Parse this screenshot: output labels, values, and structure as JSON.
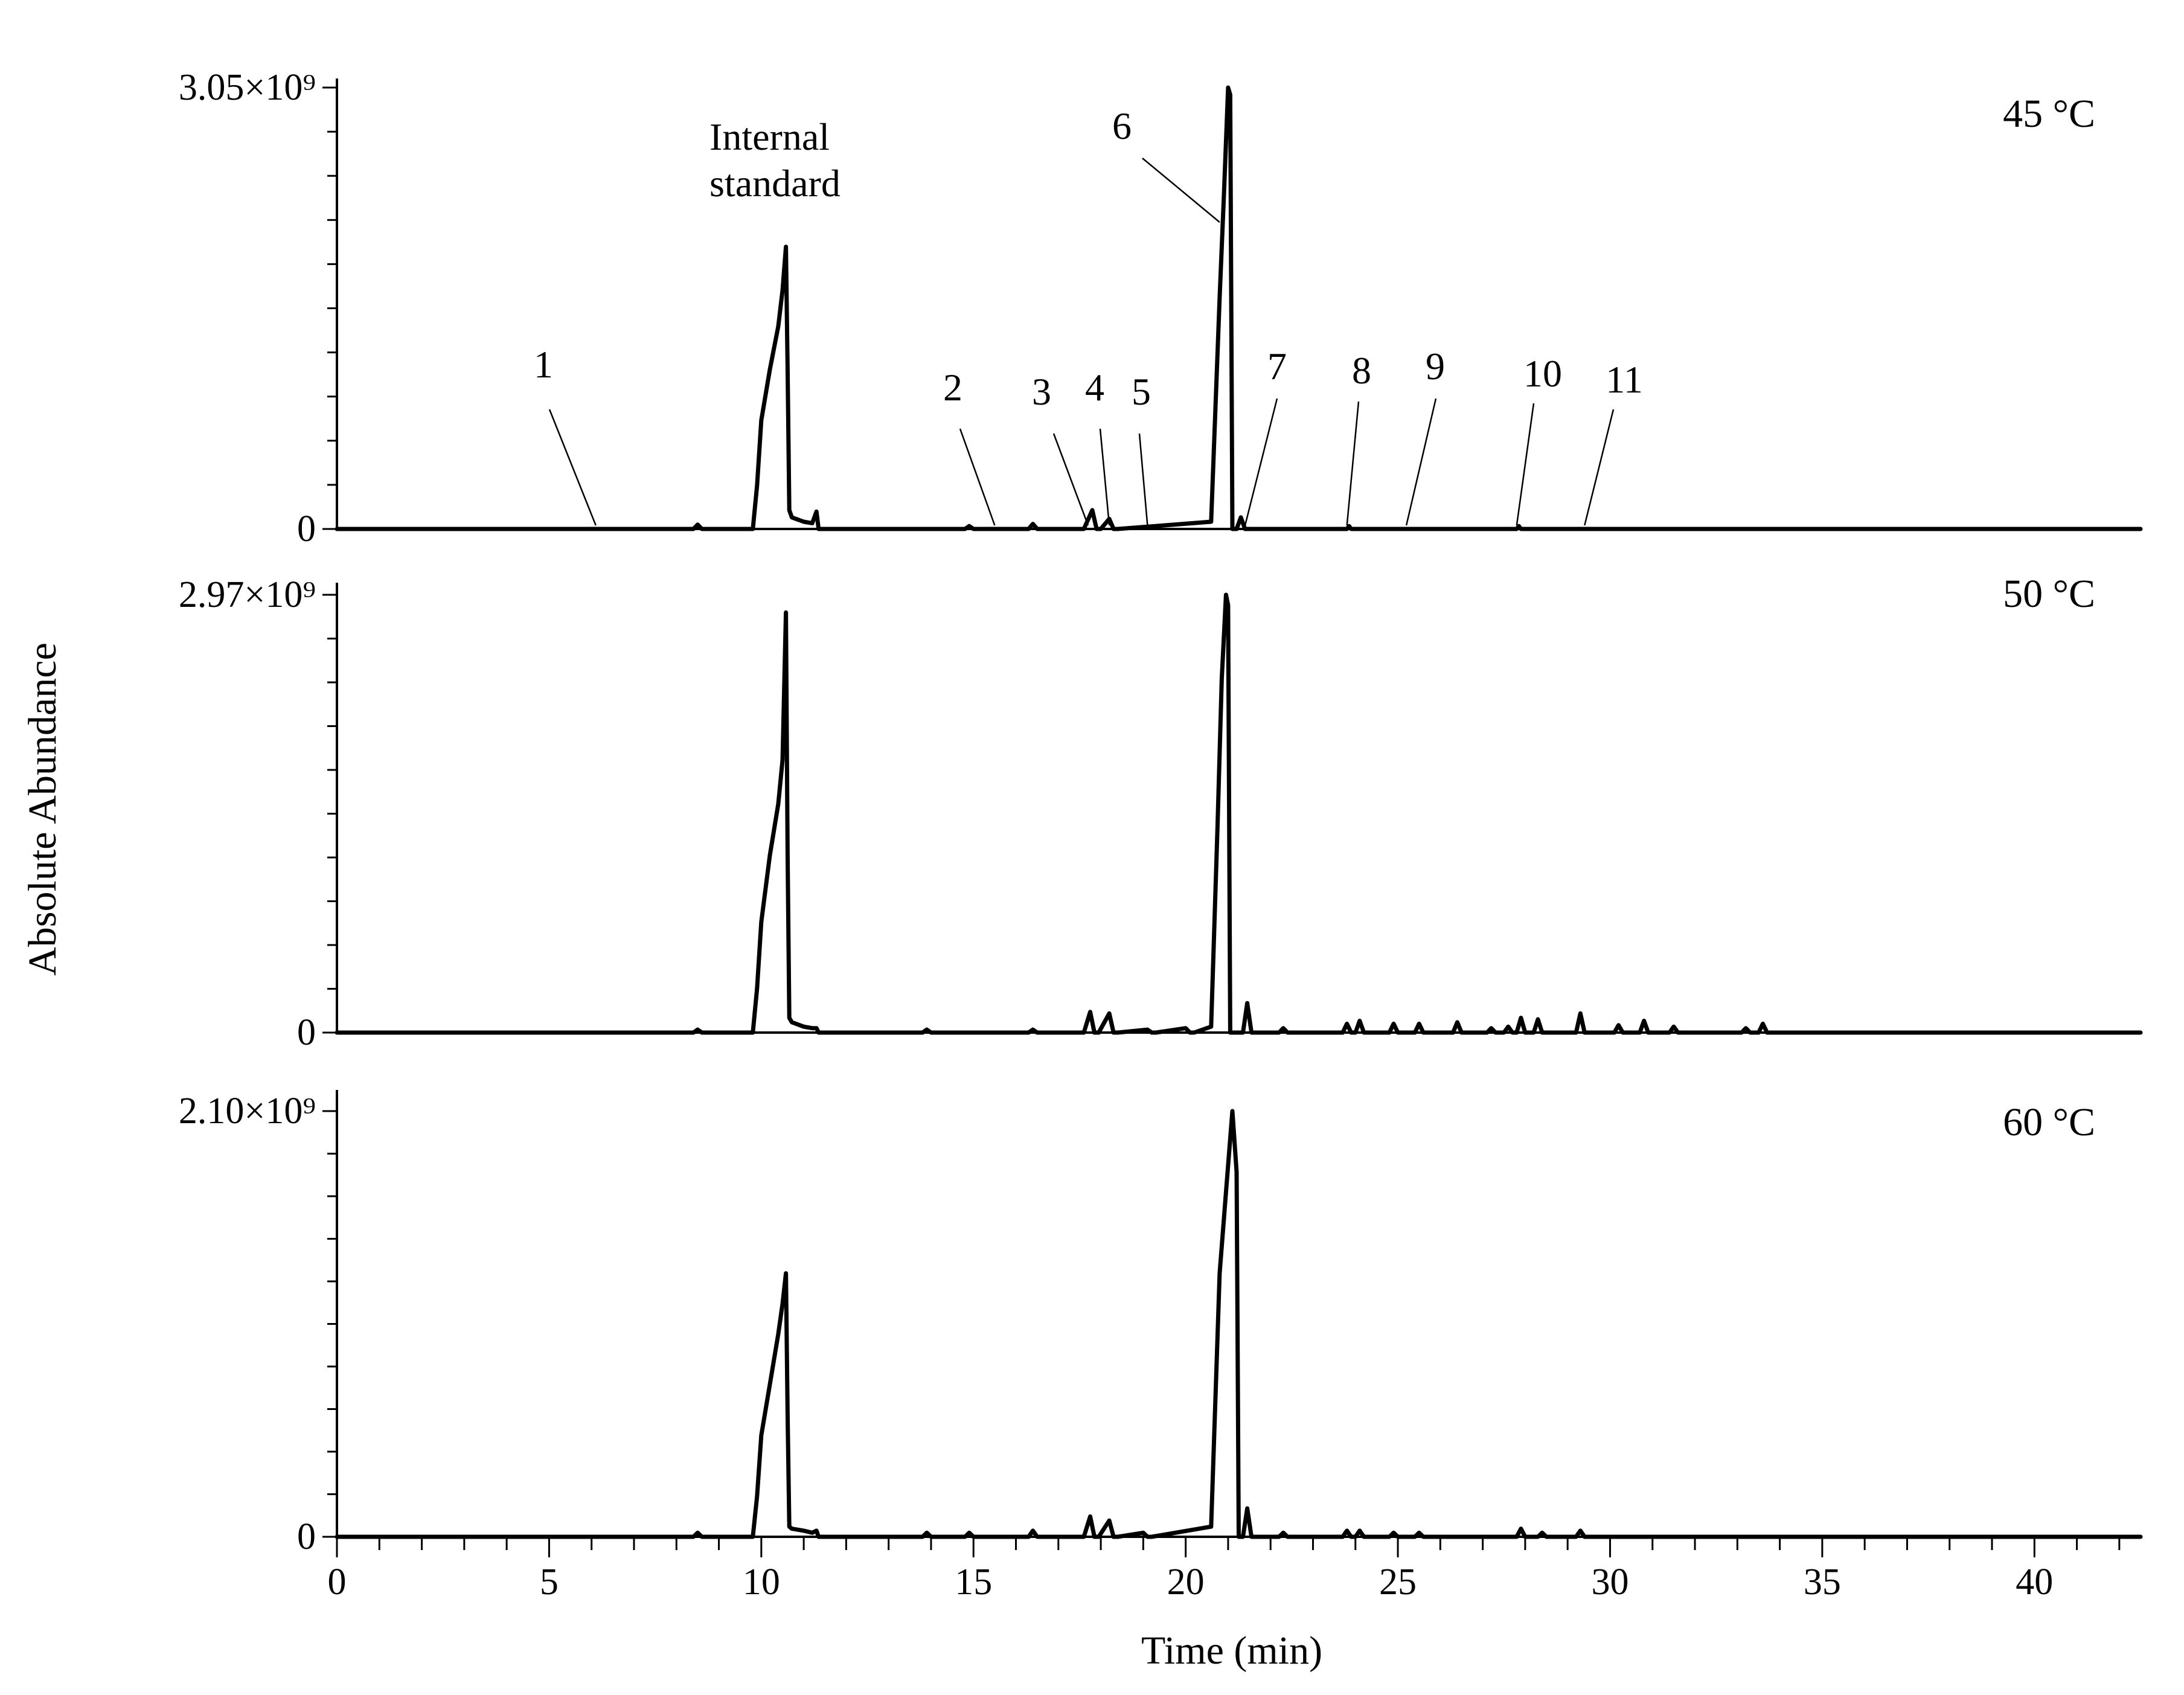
{
  "chart_data": {
    "type": "line",
    "xlabel": "Time (min)",
    "ylabel": "Absolute Abundance",
    "xlim": [
      0,
      42.5
    ],
    "x_ticks": [
      0,
      5,
      10,
      15,
      20,
      25,
      30,
      35,
      40
    ],
    "x_minor_step": 1,
    "grid": false,
    "annotations": {
      "internal_standard": [
        "Internal",
        "standard"
      ],
      "peaks": [
        {
          "label": "1",
          "time": 6.1,
          "panel": 0
        },
        {
          "label": "2",
          "time": 15.5,
          "panel": 0
        },
        {
          "label": "3",
          "time": 17.7,
          "panel": 0
        },
        {
          "label": "4",
          "time": 18.2,
          "panel": 0
        },
        {
          "label": "5",
          "time": 19.1,
          "panel": 0
        },
        {
          "label": "6",
          "time": 20.8,
          "panel": 0
        },
        {
          "label": "7",
          "time": 21.4,
          "panel": 0
        },
        {
          "label": "8",
          "time": 23.8,
          "panel": 0
        },
        {
          "label": "9",
          "time": 25.2,
          "panel": 0
        },
        {
          "label": "10",
          "time": 27.8,
          "panel": 0
        },
        {
          "label": "11",
          "time": 29.4,
          "panel": 0
        }
      ]
    },
    "panels": [
      {
        "title": "45 °C",
        "y_tick_labels": {
          "zero": "0",
          "max": "3.05×10⁹"
        },
        "ylim": [
          0,
          3050000000.0
        ],
        "y_minor_ticks": 10,
        "series": [
          {
            "x": [
              0,
              8.4,
              8.5,
              8.6,
              9.8,
              9.9,
              10.0,
              10.2,
              10.4,
              10.5,
              10.58,
              10.62,
              10.66,
              10.72,
              11.0,
              11.2,
              11.3,
              11.35,
              11.4,
              14.8,
              14.9,
              15.0,
              16.3,
              16.4,
              16.5,
              17.6,
              17.8,
              17.9,
              18.0,
              18.2,
              18.3,
              18.4,
              20.6,
              20.8,
              20.9,
              21.0,
              21.05,
              21.1,
              21.2,
              21.3,
              21.4,
              21.5,
              23.8,
              23.85,
              23.9,
              27.8,
              27.85,
              27.9,
              42.5
            ],
            "y": [
              0,
              0,
              30000000.0,
              0,
              0,
              300000000.0,
              750000000.0,
              1100000000.0,
              1400000000.0,
              1650000000.0,
              1950000000.0,
              1100000000.0,
              130000000.0,
              80000000.0,
              50000000.0,
              40000000.0,
              120000000.0,
              0,
              0,
              0,
              20000000.0,
              0,
              0,
              35000000.0,
              0,
              0,
              130000000.0,
              0,
              0,
              70000000.0,
              0,
              0,
              50000000.0,
              1600000000.0,
              2300000000.0,
              3050000000.0,
              3000000000.0,
              0,
              0,
              80000000.0,
              0,
              0,
              0,
              20000000.0,
              0,
              0,
              20000000.0,
              0,
              0
            ]
          }
        ]
      },
      {
        "title": "50 °C",
        "y_tick_labels": {
          "zero": "0",
          "max": "2.97×10⁹"
        },
        "ylim": [
          0,
          2970000000.0
        ],
        "y_minor_ticks": 10,
        "series": [
          {
            "x": [
              0,
              8.4,
              8.5,
              8.6,
              9.8,
              9.9,
              10.0,
              10.2,
              10.4,
              10.5,
              10.58,
              10.62,
              10.66,
              10.72,
              11.0,
              11.2,
              11.3,
              11.35,
              11.4,
              13.8,
              13.9,
              14.0,
              16.3,
              16.4,
              16.5,
              17.6,
              17.75,
              17.85,
              17.95,
              18.2,
              18.3,
              18.4,
              19.1,
              19.2,
              19.3,
              20.0,
              20.1,
              20.2,
              20.6,
              20.75,
              20.85,
              20.95,
              21.0,
              21.05,
              21.1,
              21.35,
              21.45,
              21.55,
              22.2,
              22.3,
              22.4,
              23.7,
              23.8,
              23.9,
              24.0,
              24.1,
              24.2,
              24.3,
              24.8,
              24.9,
              25.0,
              25.4,
              25.5,
              25.6,
              26.3,
              26.4,
              26.5,
              27.1,
              27.2,
              27.3,
              27.5,
              27.6,
              27.7,
              27.8,
              27.9,
              28.0,
              28.2,
              28.3,
              28.4,
              29.2,
              29.3,
              29.4,
              30.1,
              30.2,
              30.3,
              30.7,
              30.8,
              30.9,
              31.4,
              31.5,
              31.6,
              33.1,
              33.2,
              33.3,
              33.5,
              33.6,
              33.7,
              42.5
            ],
            "y": [
              0,
              0,
              20000000.0,
              0,
              0,
              300000000.0,
              750000000.0,
              1200000000.0,
              1550000000.0,
              1850000000.0,
              2850000000.0,
              1200000000.0,
              100000000.0,
              70000000.0,
              40000000.0,
              30000000.0,
              30000000.0,
              0,
              0,
              0,
              20000000.0,
              0,
              0,
              20000000.0,
              0,
              0,
              140000000.0,
              0,
              0,
              130000000.0,
              0,
              0,
              20000000.0,
              0,
              0,
              30000000.0,
              0,
              0,
              40000000.0,
              1400000000.0,
              2400000000.0,
              2970000000.0,
              2900000000.0,
              0,
              0,
              0,
              200000000.0,
              0,
              0,
              30000000.0,
              0,
              0,
              60000000.0,
              0,
              0,
              80000000.0,
              0,
              0,
              0,
              60000000.0,
              0,
              0,
              60000000.0,
              0,
              0,
              70000000.0,
              0,
              0,
              30000000.0,
              0,
              0,
              40000000.0,
              0,
              0,
              100000000.0,
              0,
              0,
              90000000.0,
              0,
              0,
              130000000.0,
              0,
              0,
              50000000.0,
              0,
              0,
              80000000.0,
              0,
              0,
              40000000.0,
              0,
              0,
              30000000.0,
              0,
              0,
              60000000.0,
              0,
              0
            ]
          }
        ]
      },
      {
        "title": "60 °C",
        "y_tick_labels": {
          "zero": "0",
          "max": "2.10×10⁹"
        },
        "ylim": [
          0,
          2100000000.0
        ],
        "y_minor_ticks": 10,
        "series": [
          {
            "x": [
              0,
              8.4,
              8.5,
              8.6,
              9.8,
              9.9,
              10.0,
              10.2,
              10.4,
              10.5,
              10.58,
              10.62,
              10.66,
              10.72,
              11.0,
              11.2,
              11.3,
              11.35,
              11.4,
              13.8,
              13.9,
              14.0,
              14.8,
              14.9,
              15.0,
              16.3,
              16.4,
              16.5,
              17.6,
              17.75,
              17.85,
              17.95,
              18.2,
              18.3,
              18.4,
              19.0,
              19.1,
              19.2,
              20.6,
              20.8,
              20.95,
              21.1,
              21.2,
              21.25,
              21.3,
              21.35,
              21.45,
              21.55,
              22.2,
              22.3,
              22.4,
              23.7,
              23.8,
              23.9,
              24.0,
              24.1,
              24.2,
              24.8,
              24.9,
              25.0,
              25.4,
              25.5,
              25.6,
              27.8,
              27.9,
              28.0,
              28.3,
              28.4,
              28.5,
              29.2,
              29.3,
              29.4,
              42.5
            ],
            "y": [
              0,
              0,
              20000000.0,
              0,
              0,
              200000000.0,
              500000000.0,
              750000000.0,
              1000000000.0,
              1150000000.0,
              1300000000.0,
              600000000.0,
              50000000.0,
              40000000.0,
              30000000.0,
              20000000.0,
              30000000.0,
              0,
              0,
              0,
              20000000.0,
              0,
              0,
              20000000.0,
              0,
              0,
              30000000.0,
              0,
              0,
              100000000.0,
              0,
              0,
              80000000.0,
              0,
              0,
              20000000.0,
              0,
              0,
              50000000.0,
              1300000000.0,
              1700000000.0,
              2100000000.0,
              1800000000.0,
              0,
              0,
              0,
              140000000.0,
              0,
              0,
              20000000.0,
              0,
              0,
              30000000.0,
              0,
              0,
              30000000.0,
              0,
              0,
              20000000.0,
              0,
              0,
              20000000.0,
              0,
              0,
              40000000.0,
              0,
              0,
              20000000.0,
              0,
              0,
              30000000.0,
              0,
              0
            ]
          }
        ]
      }
    ]
  }
}
